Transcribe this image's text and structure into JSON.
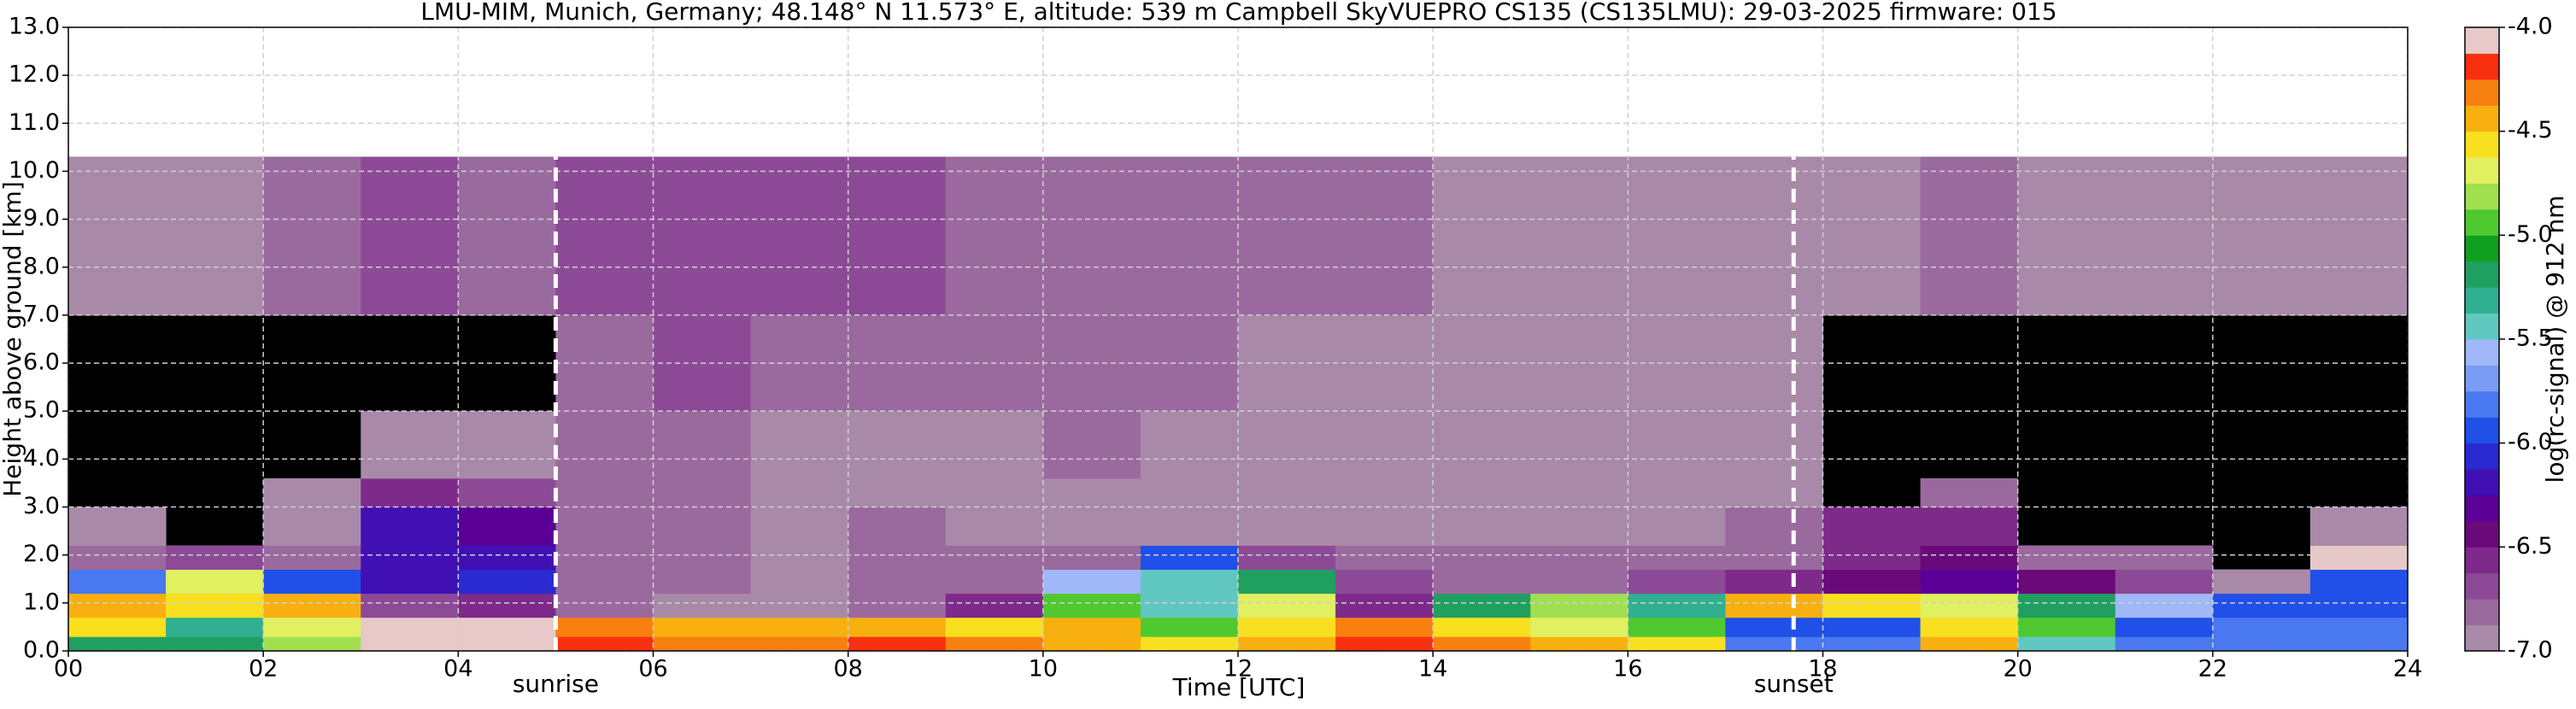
{
  "chart_data": {
    "type": "heatmap",
    "title": "LMU-MIM, Munich, Germany; 48.148° N 11.573° E, altitude: 539 m    Campbell SkyVUEPRO CS135 (CS135LMU): 29-03-2025    firmware: 015",
    "xlabel": "Time [UTC]",
    "ylabel": "Height above ground [km]",
    "colorbar_label": "log(rc-signal) @ 912 nm",
    "xlim": [
      0,
      24
    ],
    "ylim": [
      0,
      13
    ],
    "xticks": [
      {
        "value": 0,
        "label": "00"
      },
      {
        "value": 2,
        "label": "02"
      },
      {
        "value": 4,
        "label": "04"
      },
      {
        "value": 6,
        "label": "06"
      },
      {
        "value": 8,
        "label": "08"
      },
      10,
      12,
      14,
      16,
      18,
      20,
      22,
      24
    ],
    "yticks": [
      {
        "value": 0,
        "label": "0.0"
      },
      {
        "value": 1,
        "label": "1.0"
      },
      {
        "value": 2,
        "label": "2.0"
      },
      {
        "value": 3,
        "label": "3.0"
      },
      {
        "value": 4,
        "label": "4.0"
      },
      {
        "value": 5,
        "label": "5.0"
      },
      {
        "value": 6,
        "label": "6.0"
      },
      {
        "value": 7,
        "label": "7.0"
      },
      {
        "value": 8,
        "label": "8.0"
      },
      {
        "value": 9,
        "label": "9.0"
      },
      {
        "value": 10,
        "label": "10.0"
      },
      {
        "value": 11,
        "label": "11.0"
      },
      {
        "value": 12,
        "label": "12.0"
      },
      {
        "value": 13,
        "label": "13.0"
      }
    ],
    "grid": true,
    "clim": [
      -7,
      -4
    ],
    "cticks": [
      {
        "value": -4,
        "label": "-4.0"
      },
      -4.5,
      {
        "value": -5,
        "label": "-5.0"
      },
      -5.5,
      {
        "value": -6,
        "label": "-6.0"
      },
      -6.5,
      {
        "value": -7,
        "label": "-7.0"
      }
    ],
    "colormap": [
      "#a88aa8",
      "#9a6a9e",
      "#8c4a96",
      "#7e2a8a",
      "#6a0a7a",
      "#5a0096",
      "#4010b4",
      "#2a2ad0",
      "#2050e8",
      "#4a78f0",
      "#7a9cf4",
      "#a0b8f8",
      "#60c8c0",
      "#30b090",
      "#20a060",
      "#10a020",
      "#50c830",
      "#a0e050",
      "#e0f060",
      "#f8e020",
      "#f8b010",
      "#f88010",
      "#f83010",
      "#e8c8c8"
    ],
    "no_signal_color": "#000000",
    "x_edges": [
      0,
      1,
      2,
      3,
      4,
      5,
      6,
      7,
      8,
      9,
      10,
      11,
      12,
      13,
      14,
      15,
      16,
      17,
      18,
      19,
      20,
      21,
      22,
      23,
      24
    ],
    "y_edges": [
      0,
      0.3,
      0.7,
      1.2,
      1.7,
      2.2,
      3,
      3.6,
      5,
      7,
      10.3
    ],
    "z": [
      [
        -5.2,
        -5.2,
        -4.8,
        -4.1,
        -4.1,
        -4.2,
        -4.3,
        -4.3,
        -4.2,
        -4.3,
        -4.4,
        -4.6,
        -4.4,
        -4.2,
        -4.3,
        -4.5,
        -4.6,
        -5.8,
        -5.8,
        -4.4,
        -5.4,
        -5.8,
        -5.8,
        -5.8
      ],
      [
        -4.6,
        -5.3,
        -4.7,
        -4.1,
        -4.1,
        -4.3,
        -4.5,
        -4.4,
        -4.4,
        -4.6,
        -4.5,
        -5.0,
        -4.6,
        -4.3,
        -4.6,
        -4.7,
        -4.9,
        -5.9,
        -5.9,
        -4.6,
        -5.0,
        -5.9,
        -5.8,
        -5.8
      ],
      [
        -4.5,
        -4.6,
        -4.4,
        -6.7,
        -6.6,
        -6.8,
        -6.9,
        -6.9,
        -6.8,
        -6.6,
        -5.0,
        -5.5,
        -4.7,
        -6.6,
        -5.2,
        -4.8,
        -5.3,
        -4.5,
        -4.6,
        -4.7,
        -5.2,
        -5.6,
        -5.9,
        -5.9
      ],
      [
        -5.8,
        -4.7,
        -6.0,
        -6.2,
        -6.1,
        -6.8,
        -6.8,
        -6.9,
        -6.8,
        -6.8,
        -5.6,
        -5.4,
        -5.2,
        -6.7,
        -6.8,
        -6.8,
        -6.7,
        -6.6,
        -6.5,
        -6.3,
        -6.5,
        -6.7,
        -6.9,
        -6.0
      ],
      [
        -6.8,
        -6.7,
        -6.8,
        -6.2,
        -6.2,
        -6.8,
        -6.8,
        -6.9,
        -6.8,
        -6.8,
        -6.8,
        -5.9,
        -6.7,
        -6.8,
        -6.8,
        -6.8,
        -6.8,
        -6.8,
        -6.6,
        -6.5,
        -6.8,
        -6.8,
        null,
        -4.1
      ],
      [
        -6.9,
        null,
        -6.9,
        -6.2,
        -6.3,
        -6.8,
        -6.8,
        -6.9,
        -6.8,
        -6.9,
        -6.9,
        -6.9,
        -6.9,
        -6.9,
        -6.9,
        -6.9,
        -6.9,
        -6.8,
        -6.6,
        -6.6,
        null,
        null,
        null,
        -6.9
      ],
      [
        null,
        null,
        -6.9,
        -6.6,
        -6.7,
        -6.8,
        -6.8,
        -6.9,
        -6.9,
        -6.9,
        -6.9,
        -6.9,
        -6.9,
        -6.9,
        -6.9,
        -6.9,
        -6.9,
        -6.9,
        null,
        -6.8,
        null,
        null,
        null,
        null
      ],
      [
        null,
        null,
        null,
        -6.9,
        -6.9,
        -6.8,
        -6.8,
        -6.9,
        -6.9,
        -6.9,
        -6.8,
        -6.9,
        -6.9,
        -6.9,
        -6.9,
        -6.9,
        -6.9,
        -6.9,
        null,
        null,
        null,
        null,
        null,
        null
      ],
      [
        null,
        null,
        null,
        null,
        null,
        -6.8,
        -6.7,
        -6.8,
        -6.8,
        -6.8,
        -6.8,
        -6.8,
        -6.9,
        -6.9,
        -6.9,
        -6.9,
        -6.9,
        -6.9,
        null,
        null,
        null,
        null,
        null,
        null
      ],
      [
        -6.9,
        -6.9,
        -6.8,
        -6.7,
        -6.8,
        -6.7,
        -6.7,
        -6.7,
        -6.7,
        -6.8,
        -6.8,
        -6.8,
        -6.8,
        -6.8,
        -6.9,
        -6.9,
        -6.9,
        -6.9,
        -6.9,
        -6.8,
        -6.9,
        -6.9,
        -6.9,
        -6.9
      ]
    ],
    "annotations": [
      {
        "text": "sunrise",
        "x": 5.0
      },
      {
        "text": "sunset",
        "x": 17.7
      }
    ]
  }
}
